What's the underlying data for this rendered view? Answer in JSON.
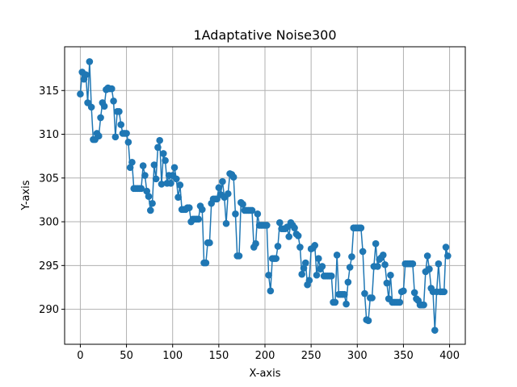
{
  "chart_data": {
    "type": "line",
    "title": "1Adaptative Noise300",
    "xlabel": "X-axis",
    "ylabel": "Y-axis",
    "xlim": [
      -17,
      417
    ],
    "ylim": [
      286,
      320
    ],
    "grid": true,
    "marker": "circle",
    "colors": {
      "series": "#1f77b4",
      "grid": "#b0b0b0",
      "axis": "#000000"
    },
    "xticks": [
      0,
      50,
      100,
      150,
      200,
      250,
      300,
      350,
      400
    ],
    "xtick_labels": [
      "0",
      "50",
      "100",
      "150",
      "200",
      "250",
      "300",
      "350",
      "400"
    ],
    "yticks": [
      290,
      295,
      300,
      305,
      310,
      315
    ],
    "ytick_labels": [
      "290",
      "295",
      "300",
      "305",
      "310",
      "315"
    ],
    "series": [
      {
        "x": [
          0,
          2,
          4,
          6,
          8,
          10,
          12,
          14,
          16,
          18,
          20,
          22,
          24,
          26,
          28,
          30,
          32,
          34,
          36,
          38,
          40,
          42,
          44,
          46,
          48,
          50,
          52,
          54,
          56,
          58,
          60,
          62,
          64,
          66,
          68,
          70,
          72,
          74,
          76,
          78,
          80,
          82,
          84,
          86,
          88,
          90,
          92,
          94,
          96,
          98,
          100,
          102,
          104,
          106,
          108,
          110,
          112,
          114,
          116,
          118,
          120,
          122,
          124,
          126,
          128,
          130,
          132,
          134,
          136,
          138,
          140,
          142,
          144,
          146,
          148,
          150,
          152,
          154,
          156,
          158,
          160,
          162,
          164,
          166,
          168,
          170,
          172,
          174,
          176,
          178,
          180,
          182,
          184,
          186,
          188,
          190,
          192,
          194,
          196,
          198,
          200,
          202,
          204,
          206,
          208,
          210,
          212,
          214,
          216,
          218,
          220,
          222,
          224,
          226,
          228,
          230,
          232,
          234,
          236,
          238,
          240,
          242,
          244,
          246,
          248,
          250,
          252,
          254,
          256,
          258,
          260,
          262,
          264,
          266,
          268,
          270,
          272,
          274,
          276,
          278,
          280,
          282,
          284,
          286,
          288,
          290,
          292,
          294,
          296,
          298,
          300,
          302,
          304,
          306,
          308,
          310,
          312,
          314,
          316,
          318,
          320,
          322,
          324,
          326,
          328,
          330,
          332,
          334,
          336,
          338,
          340,
          342,
          344,
          346,
          348,
          350,
          352,
          354,
          356,
          358,
          360,
          362,
          364,
          366,
          368,
          370,
          372,
          374,
          376,
          378,
          380,
          382,
          384,
          386,
          388,
          390,
          392,
          394,
          396,
          398
        ],
        "y": [
          314.6,
          317.1,
          316.3,
          316.8,
          313.6,
          318.3,
          313.1,
          309.4,
          309.4,
          310.1,
          309.8,
          311.9,
          313.6,
          313.2,
          315.1,
          315.3,
          315.2,
          315.2,
          313.8,
          309.7,
          312.6,
          312.6,
          311.1,
          310.1,
          310.1,
          310.1,
          309.1,
          306.2,
          306.8,
          303.8,
          303.8,
          303.8,
          303.8,
          303.8,
          306.4,
          305.3,
          303.5,
          302.9,
          301.3,
          302.1,
          306.5,
          304.9,
          308.5,
          309.3,
          304.3,
          307.8,
          307.0,
          304.4,
          305.3,
          304.4,
          305.3,
          306.2,
          304.9,
          302.8,
          304.2,
          301.4,
          301.4,
          301.4,
          301.6,
          301.6,
          300.0,
          300.3,
          300.3,
          300.3,
          300.3,
          301.8,
          301.4,
          295.3,
          295.3,
          297.6,
          297.6,
          302.1,
          302.6,
          302.6,
          302.6,
          303.9,
          303.1,
          304.6,
          302.8,
          299.8,
          303.2,
          305.5,
          305.4,
          305.1,
          300.9,
          296.1,
          296.1,
          302.2,
          302.0,
          301.3,
          301.3,
          301.3,
          301.3,
          301.3,
          297.1,
          297.5,
          300.9,
          299.6,
          299.6,
          299.6,
          299.6,
          299.6,
          293.9,
          292.1,
          295.8,
          295.8,
          295.8,
          297.2,
          299.9,
          299.2,
          299.2,
          299.2,
          299.4,
          298.3,
          299.9,
          299.6,
          299.3,
          298.6,
          298.4,
          297.1,
          294.0,
          294.7,
          295.3,
          292.8,
          293.3,
          296.9,
          297.0,
          297.3,
          293.9,
          295.8,
          294.6,
          294.9,
          293.8,
          293.8,
          293.8,
          293.8,
          293.8,
          290.8,
          290.8,
          296.2,
          291.7,
          291.7,
          291.7,
          291.7,
          290.6,
          293.1,
          294.8,
          296.0,
          299.3,
          299.3,
          299.3,
          299.3,
          299.3,
          296.6,
          291.8,
          288.8,
          288.7,
          291.3,
          291.3,
          294.9,
          297.5,
          294.9,
          295.7,
          295.9,
          296.2,
          295.1,
          293.0,
          291.2,
          293.9,
          290.8,
          290.8,
          290.8,
          290.8,
          290.8,
          292.0,
          292.1,
          295.2,
          295.2,
          295.2,
          295.2,
          295.2,
          291.9,
          291.2,
          291.0,
          290.5,
          290.5,
          290.5,
          294.3,
          296.1,
          294.6,
          292.4,
          292.0,
          287.6,
          292.0,
          295.2,
          292.0,
          292.0,
          292.0,
          297.1,
          296.1
        ]
      }
    ]
  }
}
